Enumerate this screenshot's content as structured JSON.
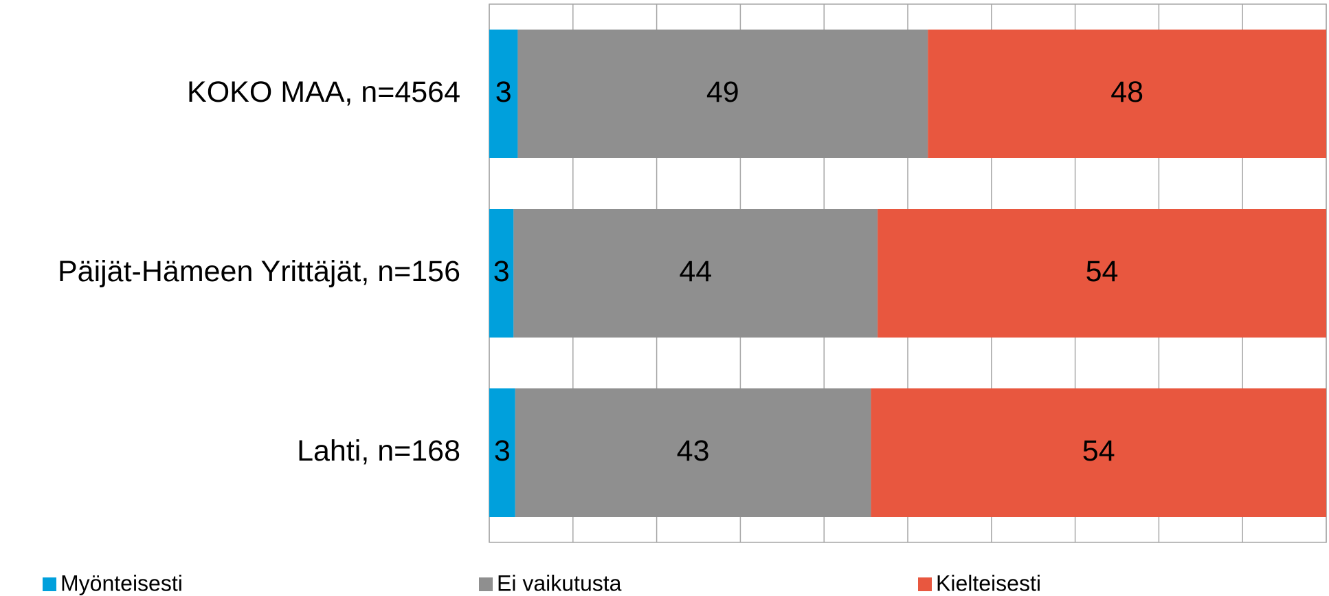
{
  "chart_data": {
    "type": "stacked-bar-horizontal",
    "categories": [
      "KOKO MAA, n=4564",
      "Päijät-Hämeen Yrittäjät, n=156",
      "Lahti, n=168"
    ],
    "series": [
      {
        "name": "Myönteisesti",
        "color": "#00a0dc",
        "values": [
          3.4,
          2.9,
          3.1
        ],
        "value_labels": [
          "3",
          "3",
          "3"
        ]
      },
      {
        "name": "Ei vaikutusta",
        "color": "#8f8f8f",
        "values": [
          49,
          43.5,
          42.5
        ],
        "value_labels": [
          "49",
          "44",
          "43"
        ]
      },
      {
        "name": "Kielteisesti",
        "color": "#e8573f",
        "values": [
          47.6,
          53.6,
          54.4
        ],
        "value_labels": [
          "48",
          "54",
          "54"
        ]
      }
    ],
    "xlim": [
      0,
      100
    ],
    "xticks": [
      0,
      10,
      20,
      30,
      40,
      50,
      60,
      70,
      80,
      90,
      100
    ],
    "grid": true,
    "legend": "bottom"
  }
}
